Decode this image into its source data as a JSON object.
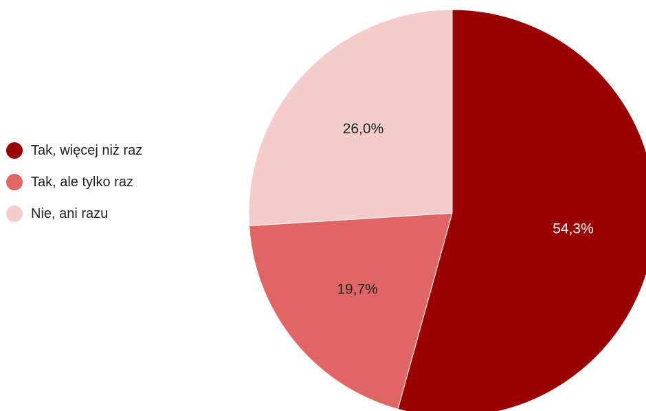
{
  "chart_data": {
    "type": "pie",
    "title": "",
    "legend_position": "left",
    "start": "top",
    "direction": "clockwise",
    "slices": [
      {
        "label": "Tak, więcej niż raz",
        "value": 54.3,
        "value_label": "54,3%",
        "color": "#990000",
        "label_color": "#ffffff"
      },
      {
        "label": "Tak, ale tylko raz",
        "value": 19.7,
        "value_label": "19,7%",
        "color": "#e06666",
        "label_color": "#222222"
      },
      {
        "label": "Nie, ani razu",
        "value": 26.0,
        "value_label": "26,0%",
        "color": "#f4cccc",
        "label_color": "#222222"
      }
    ]
  }
}
